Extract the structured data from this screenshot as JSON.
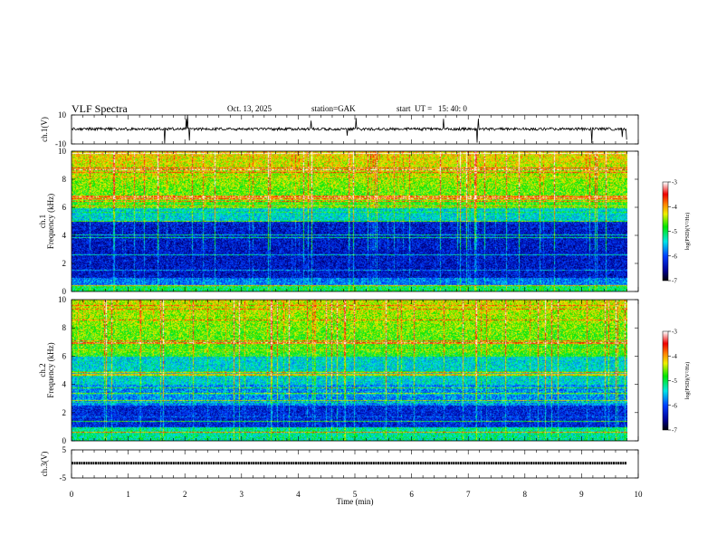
{
  "header": {
    "title": "VLF  Spectra",
    "date": "Oct. 13, 2025",
    "station": "station=GAK",
    "start": "start  UT =   15: 40: 0"
  },
  "chart_data": [
    {
      "type": "line",
      "id": "ch1",
      "ylabel": "ch.1(V)",
      "ylim": [
        -10,
        10
      ],
      "yticks": [
        "10",
        "-10"
      ],
      "xlim": [
        0,
        10
      ],
      "data_end_min": 9.8,
      "baseline": 0,
      "noise_amplitude": 1
    },
    {
      "type": "heatmap",
      "id": "ch1-spectrogram",
      "ylabel": "ch.1\nFrequency (kHz)",
      "ylabel_lines": [
        "ch.1",
        "Frequency  (kHz)"
      ],
      "ylim": [
        0,
        10
      ],
      "yticks": [
        "10",
        "8",
        "6",
        "4",
        "2",
        "0"
      ],
      "xlim": [
        0,
        10
      ],
      "data_end_min": 9.8,
      "colorbar": {
        "label": "log(PSD)(V²/Hz)",
        "range": [
          -7,
          -3
        ],
        "ticks": [
          "-3",
          "-4",
          "-5",
          "-6",
          "-7"
        ]
      }
    },
    {
      "type": "heatmap",
      "id": "ch2-spectrogram",
      "ylabel_lines": [
        "ch.2",
        "Frequency  (kHz)"
      ],
      "ylim": [
        0,
        10
      ],
      "yticks": [
        "10",
        "8",
        "6",
        "4",
        "2",
        "0"
      ],
      "xlim": [
        0,
        10
      ],
      "data_end_min": 9.8,
      "colorbar": {
        "label": "log(PSD)(V²/Hz)",
        "range": [
          -7,
          -3
        ],
        "ticks": [
          "-3",
          "-4",
          "-5",
          "-6",
          "-7"
        ]
      }
    },
    {
      "type": "line",
      "id": "ch3",
      "ylabel": "ch.3(V)",
      "ylim": [
        -5,
        5
      ],
      "yticks": [
        "5",
        "-5"
      ],
      "xlim": [
        0,
        10
      ],
      "data_end_min": 9.8,
      "baseline": 0.3
    }
  ],
  "xaxis": {
    "label": "Time  (min)",
    "ticks": [
      "0",
      "1",
      "2",
      "3",
      "4",
      "5",
      "6",
      "7",
      "8",
      "9",
      "10"
    ]
  }
}
